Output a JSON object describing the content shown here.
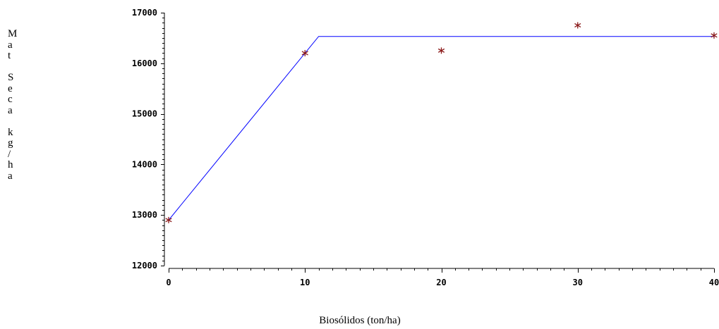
{
  "chart_data": {
    "type": "scatter",
    "xlabel": "Biosólidos (ton/ha)",
    "ylabel": "Mat Seca kg/ha",
    "ylabel_chars": [
      "M",
      "a",
      "t",
      "",
      "S",
      "e",
      "c",
      "a",
      "",
      "k",
      "g",
      "/",
      "h",
      "a"
    ],
    "xlim": [
      0,
      40
    ],
    "ylim": [
      12000,
      17000
    ],
    "x_ticks": [
      0,
      10,
      20,
      30,
      40
    ],
    "y_ticks": [
      12000,
      13000,
      14000,
      15000,
      16000,
      17000
    ],
    "x_tick_labels": [
      "0",
      "10",
      "20",
      "30",
      "40"
    ],
    "y_tick_labels": [
      "12000",
      "13000",
      "14000",
      "15000",
      "16000",
      "17000"
    ],
    "x_minor_step": 1,
    "y_minor_step": 100,
    "grid": false,
    "points": [
      {
        "x": 0,
        "y": 12900
      },
      {
        "x": 10,
        "y": 16200
      },
      {
        "x": 20,
        "y": 16250
      },
      {
        "x": 30,
        "y": 16750
      },
      {
        "x": 40,
        "y": 16550
      }
    ],
    "fitted_line": [
      {
        "x": 0,
        "y": 12900
      },
      {
        "x": 11,
        "y": 16530
      },
      {
        "x": 40,
        "y": 16530
      }
    ],
    "colors": {
      "points": "#8b1a1a",
      "line": "#0000ff",
      "axis": "#000000"
    }
  }
}
